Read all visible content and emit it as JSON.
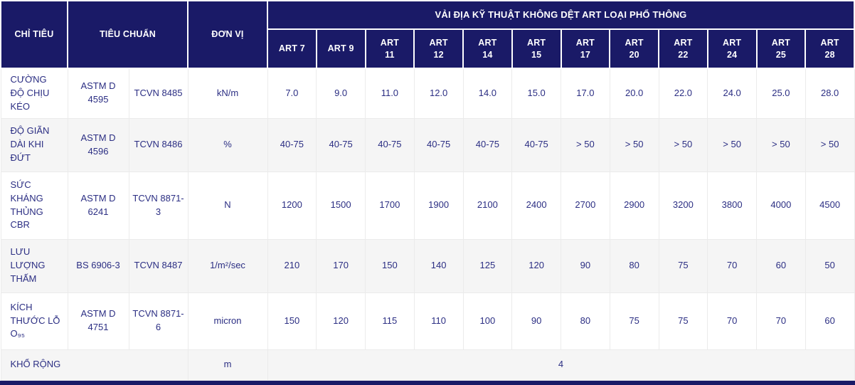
{
  "colors": {
    "header_bg": "#1a1a67",
    "body_text": "#2b2e83",
    "row_bg": "#ffffff",
    "row_alt_bg": "#f5f5f5",
    "grid_line": "#ebebeb",
    "bottom_bar": "#1a1a67"
  },
  "table": {
    "corner_headers": {
      "criteria": "CHỈ TIÊU",
      "standard": "TIÊU CHUẨN",
      "unit": "ĐƠN VỊ"
    },
    "group_header": "VẢI ĐỊA KỸ THUẬT KHÔNG DỆT ART LOẠI PHỔ THÔNG",
    "art_columns": [
      "ART 7",
      "ART 9",
      "ART\n11",
      "ART\n12",
      "ART\n14",
      "ART\n15",
      "ART\n17",
      "ART\n20",
      "ART\n22",
      "ART\n24",
      "ART\n25",
      "ART\n28"
    ],
    "rows": [
      {
        "criteria": "CƯỜNG ĐỘ CHỊU KÉO",
        "standard_astm": "ASTM D 4595",
        "standard_tcvn": "TCVN 8485",
        "unit": "kN/m",
        "values": [
          "7.0",
          "9.0",
          "11.0",
          "12.0",
          "14.0",
          "15.0",
          "17.0",
          "20.0",
          "22.0",
          "24.0",
          "25.0",
          "28.0"
        ]
      },
      {
        "criteria": "ĐỘ GIÃN DÀI KHI ĐỨT",
        "standard_astm": "ASTM D 4596",
        "standard_tcvn": "TCVN 8486",
        "unit": "%",
        "values": [
          "40-75",
          "40-75",
          "40-75",
          "40-75",
          "40-75",
          "40-75",
          "> 50",
          "> 50",
          "> 50",
          "> 50",
          "> 50",
          "> 50"
        ]
      },
      {
        "criteria": "SỨC KHÁNG THỦNG CBR",
        "standard_astm": "ASTM D 6241",
        "standard_tcvn": "TCVN 8871-3",
        "unit": "N",
        "values": [
          "1200",
          "1500",
          "1700",
          "1900",
          "2100",
          "2400",
          "2700",
          "2900",
          "3200",
          "3800",
          "4000",
          "4500"
        ]
      },
      {
        "criteria": "LƯU LƯỢNG THẤM",
        "standard_astm": "BS 6906-3",
        "standard_tcvn": "TCVN 8487",
        "unit": "1/m²/sec",
        "values": [
          "210",
          "170",
          "150",
          "140",
          "125",
          "120",
          "90",
          "80",
          "75",
          "70",
          "60",
          "50"
        ]
      },
      {
        "criteria": "KÍCH THƯỚC LỖ O₉₅",
        "standard_astm": "ASTM D 4751",
        "standard_tcvn": "TCVN 8871-6",
        "unit": "micron",
        "values": [
          "150",
          "120",
          "115",
          "110",
          "100",
          "90",
          "80",
          "75",
          "75",
          "70",
          "70",
          "60"
        ]
      }
    ],
    "footer_row": {
      "criteria": "KHỔ RỘNG",
      "unit": "m",
      "value": "4"
    }
  }
}
